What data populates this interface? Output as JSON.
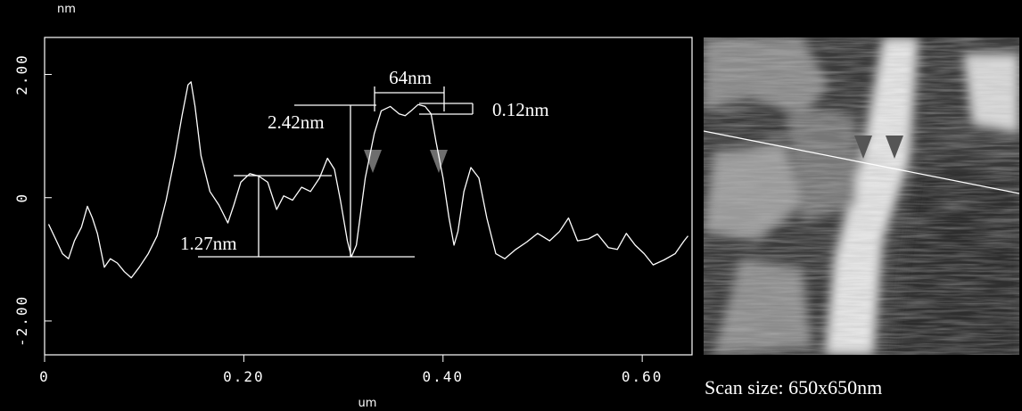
{
  "chart_data": {
    "type": "line",
    "y_label": "nm",
    "x_label": "um",
    "annotations": [
      "64nm",
      "0.12nm",
      "2.42nm",
      "1.27nm"
    ],
    "caption": "Scan size: 650x650nm",
    "color": "#ffffff",
    "x": [
      0.004,
      0.011,
      0.018,
      0.024,
      0.03,
      0.037,
      0.043,
      0.048,
      0.053,
      0.06,
      0.066,
      0.073,
      0.08,
      0.087,
      0.095,
      0.104,
      0.113,
      0.122,
      0.131,
      0.138,
      0.144,
      0.147,
      0.151,
      0.157,
      0.166,
      0.175,
      0.184,
      0.19,
      0.197,
      0.206,
      0.215,
      0.224,
      0.233,
      0.24,
      0.249,
      0.258,
      0.267,
      0.276,
      0.284,
      0.291,
      0.297,
      0.304,
      0.308,
      0.313,
      0.322,
      0.331,
      0.338,
      0.347,
      0.356,
      0.362,
      0.368,
      0.375,
      0.382,
      0.388,
      0.393,
      0.4,
      0.406,
      0.411,
      0.415,
      0.421,
      0.428,
      0.436,
      0.444,
      0.453,
      0.462,
      0.473,
      0.484,
      0.495,
      0.507,
      0.517,
      0.526,
      0.535,
      0.546,
      0.555,
      0.566,
      0.575,
      0.584,
      0.593,
      0.602,
      0.611,
      0.622,
      0.633,
      0.642,
      0.646
    ],
    "values": [
      -0.43,
      -0.67,
      -0.91,
      -0.99,
      -0.7,
      -0.48,
      -0.14,
      -0.33,
      -0.58,
      -1.13,
      -0.99,
      -1.06,
      -1.2,
      -1.3,
      -1.13,
      -0.91,
      -0.62,
      -0.04,
      0.68,
      1.33,
      1.83,
      1.88,
      1.48,
      0.68,
      0.1,
      -0.12,
      -0.41,
      -0.12,
      0.25,
      0.39,
      0.35,
      0.25,
      -0.19,
      0.03,
      -0.04,
      0.17,
      0.1,
      0.32,
      0.64,
      0.46,
      -0.04,
      -0.7,
      -0.96,
      -0.77,
      0.32,
      1.04,
      1.41,
      1.48,
      1.36,
      1.33,
      1.41,
      1.51,
      1.48,
      1.36,
      0.9,
      0.32,
      -0.33,
      -0.77,
      -0.55,
      0.1,
      0.49,
      0.32,
      -0.33,
      -0.91,
      -0.99,
      -0.84,
      -0.72,
      -0.58,
      -0.7,
      -0.55,
      -0.33,
      -0.7,
      -0.67,
      -0.59,
      -0.81,
      -0.84,
      -0.58,
      -0.77,
      -0.91,
      -1.09,
      -1.01,
      -0.91,
      -0.7,
      -0.62
    ],
    "xlim": [
      0,
      0.65
    ],
    "ylim": [
      -2.55,
      2.6
    ],
    "xticks": [
      0,
      {
        "value": 0.2,
        "label": "0.20"
      },
      {
        "value": 0.4,
        "label": "0.40"
      },
      {
        "value": 0.6,
        "label": "0.60"
      }
    ],
    "yticks": [
      {
        "value": -2,
        "label": "-2.00"
      },
      0,
      {
        "value": 2,
        "label": "2.00"
      }
    ],
    "grid": false
  }
}
